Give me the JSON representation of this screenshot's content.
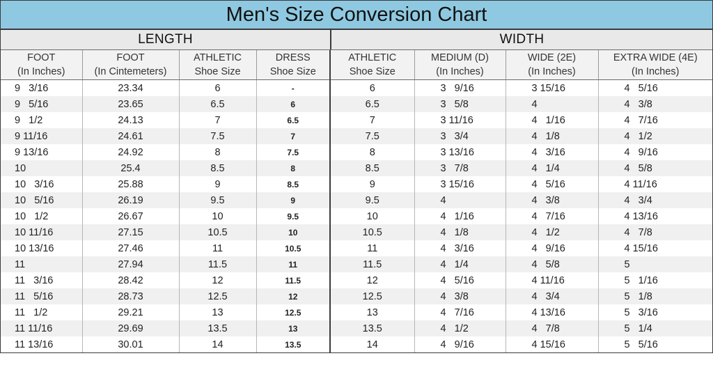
{
  "title": "Men's Size Conversion Chart",
  "sections": {
    "length": "LENGTH",
    "width": "WIDTH"
  },
  "columns": [
    {
      "top": "FOOT",
      "bottom": "(In Inches)"
    },
    {
      "top": "FOOT",
      "bottom": "(In Cintemeters)"
    },
    {
      "top": "ATHLETIC",
      "bottom": "Shoe Size"
    },
    {
      "top": "DRESS",
      "bottom": "Shoe Size"
    },
    {
      "top": "ATHLETIC",
      "bottom": "Shoe Size"
    },
    {
      "top": "MEDIUM (D)",
      "bottom": "(In Inches)"
    },
    {
      "top": "WIDE (2E)",
      "bottom": "(In Inches)"
    },
    {
      "top": "EXTRA WIDE (4E)",
      "bottom": "(In Inches)"
    }
  ],
  "rows": [
    [
      "9   3/16",
      "23.34",
      "6",
      "-",
      "6",
      "3   9/16",
      "3 15/16",
      "4   5/16"
    ],
    [
      "9   5/16",
      "23.65",
      "6.5",
      "6",
      "6.5",
      "3   5/8",
      "4",
      "4   3/8"
    ],
    [
      "9   1/2",
      "24.13",
      "7",
      "6.5",
      "7",
      "3 11/16",
      "4   1/16",
      "4   7/16"
    ],
    [
      "9 11/16",
      "24.61",
      "7.5",
      "7",
      "7.5",
      "3   3/4",
      "4   1/8",
      "4   1/2"
    ],
    [
      "9 13/16",
      "24.92",
      "8",
      "7.5",
      "8",
      "3 13/16",
      "4   3/16",
      "4   9/16"
    ],
    [
      "10",
      "25.4",
      "8.5",
      "8",
      "8.5",
      "3   7/8",
      "4   1/4",
      "4   5/8"
    ],
    [
      "10   3/16",
      "25.88",
      "9",
      "8.5",
      "9",
      "3 15/16",
      "4   5/16",
      "4 11/16"
    ],
    [
      "10   5/16",
      "26.19",
      "9.5",
      "9",
      "9.5",
      "4",
      "4   3/8",
      "4   3/4"
    ],
    [
      "10   1/2",
      "26.67",
      "10",
      "9.5",
      "10",
      "4   1/16",
      "4   7/16",
      "4 13/16"
    ],
    [
      "10 11/16",
      "27.15",
      "10.5",
      "10",
      "10.5",
      "4   1/8",
      "4   1/2",
      "4   7/8"
    ],
    [
      "10 13/16",
      "27.46",
      "11",
      "10.5",
      "11",
      "4   3/16",
      "4   9/16",
      "4 15/16"
    ],
    [
      "11",
      "27.94",
      "11.5",
      "11",
      "11.5",
      "4   1/4",
      "4   5/8",
      "5"
    ],
    [
      "11   3/16",
      "28.42",
      "12",
      "11.5",
      "12",
      "4   5/16",
      "4 11/16",
      "5   1/16"
    ],
    [
      "11   5/16",
      "28.73",
      "12.5",
      "12",
      "12.5",
      "4   3/8",
      "4   3/4",
      "5   1/8"
    ],
    [
      "11   1/2",
      "29.21",
      "13",
      "12.5",
      "13",
      "4   7/16",
      "4 13/16",
      "5   3/16"
    ],
    [
      "11 11/16",
      "29.69",
      "13.5",
      "13",
      "13.5",
      "4   1/2",
      "4   7/8",
      "5   1/4"
    ],
    [
      "11 13/16",
      "30.01",
      "14",
      "13.5",
      "14",
      "4   9/16",
      "4 15/16",
      "5   5/16"
    ]
  ],
  "colors": {
    "title_bg": "#8fc9e1",
    "section_bg": "#e9e9e9",
    "header_bg": "#f2f2f2",
    "row_alt": "#f0f0f0",
    "border": "#3a3a3a"
  }
}
